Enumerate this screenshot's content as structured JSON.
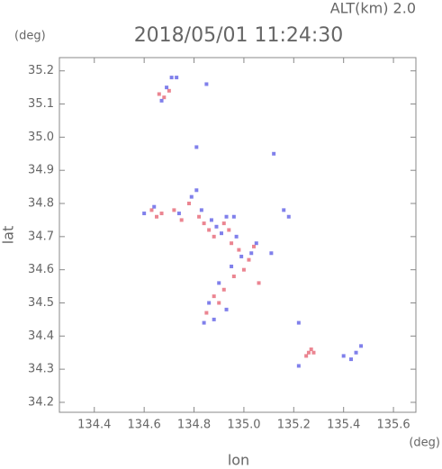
{
  "chart_data": {
    "type": "scatter",
    "title": "2018/05/01 11:24:30",
    "subtitle": "ALT(km) 2.0",
    "x_label": "lon",
    "y_label": "lat",
    "x_unit": "(deg)",
    "y_unit": "(deg)",
    "xlim": [
      134.26,
      135.69
    ],
    "ylim": [
      34.17,
      35.24
    ],
    "xticks": [
      134.4,
      134.6,
      134.8,
      {
        "value": 135.0,
        "label": "135.0"
      },
      135.2,
      135.4,
      135.6
    ],
    "yticks": [
      34.2,
      34.3,
      34.4,
      34.5,
      34.6,
      34.7,
      34.8,
      34.9,
      {
        "value": 35.0,
        "label": "35.0"
      },
      35.1,
      35.2
    ],
    "series": [
      {
        "color": "#e8707e",
        "x": [
          134.66,
          134.68,
          134.7,
          134.63,
          134.65,
          134.67,
          134.72,
          134.75,
          134.78,
          134.82,
          134.84,
          134.86,
          134.88,
          134.92,
          134.95,
          134.98,
          135.02,
          135.0,
          135.04,
          134.94,
          134.88,
          134.9,
          134.92,
          134.85,
          135.26,
          135.27,
          135.25,
          135.28,
          134.96,
          135.06
        ],
        "y": [
          35.13,
          35.12,
          35.14,
          34.78,
          34.76,
          34.77,
          34.78,
          34.75,
          34.8,
          34.76,
          34.74,
          34.72,
          34.7,
          34.74,
          34.68,
          34.66,
          34.63,
          34.6,
          34.67,
          34.72,
          34.52,
          34.5,
          34.54,
          34.47,
          34.35,
          34.36,
          34.34,
          34.35,
          34.58,
          34.56
        ]
      },
      {
        "color": "#6a6ae8",
        "x": [
          134.71,
          134.73,
          134.69,
          134.67,
          134.85,
          134.6,
          134.64,
          134.74,
          134.79,
          134.81,
          134.83,
          134.87,
          134.89,
          134.91,
          134.93,
          134.97,
          134.99,
          135.03,
          135.05,
          134.95,
          134.9,
          134.86,
          134.88,
          134.93,
          135.12,
          135.16,
          135.18,
          135.22,
          135.4,
          135.43,
          135.45,
          135.47,
          135.22,
          135.11,
          134.81,
          134.84,
          134.96
        ],
        "y": [
          35.18,
          35.18,
          35.15,
          35.11,
          35.16,
          34.77,
          34.79,
          34.77,
          34.82,
          34.84,
          34.78,
          34.75,
          34.73,
          34.71,
          34.76,
          34.7,
          34.64,
          34.65,
          34.68,
          34.61,
          34.56,
          34.5,
          34.45,
          34.48,
          34.95,
          34.78,
          34.76,
          34.44,
          34.34,
          34.33,
          34.35,
          34.37,
          34.31,
          34.65,
          34.97,
          34.44,
          34.76
        ]
      }
    ]
  }
}
